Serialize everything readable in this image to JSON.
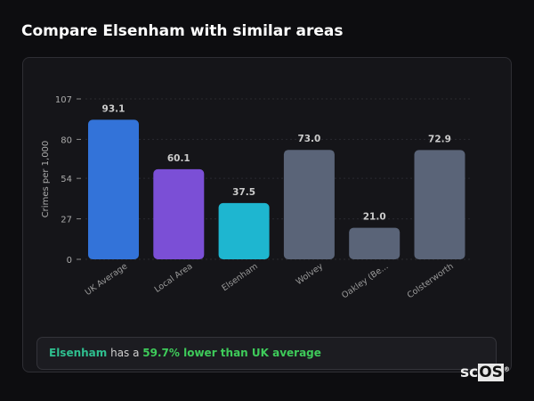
{
  "title": "Compare Elsenham with similar areas",
  "chart_data": {
    "type": "bar",
    "categories": [
      "UK Average",
      "Local Area",
      "Elsenham",
      "Wolvey",
      "Oakley (Be...",
      "Colsterworth"
    ],
    "values": [
      93.1,
      60.1,
      37.5,
      73.0,
      21.0,
      72.9
    ],
    "value_labels": [
      "93.1",
      "60.1",
      "37.5",
      "73.0",
      "21.0",
      "72.9"
    ],
    "colors": [
      "#3373d9",
      "#7b4fd6",
      "#1eb6d0",
      "#5a6478",
      "#5a6478",
      "#5a6478"
    ],
    "ylabel": "Crimes per 1,000",
    "yticks": [
      0,
      27,
      54,
      80,
      107
    ],
    "ylim": [
      0,
      107
    ],
    "grid": true
  },
  "summary": {
    "area": "Elsenham",
    "middle": " has a ",
    "comparison": "59.7% lower than UK average"
  },
  "logo": {
    "prefix": "sc",
    "boxed": "OS",
    "mark": "®"
  }
}
